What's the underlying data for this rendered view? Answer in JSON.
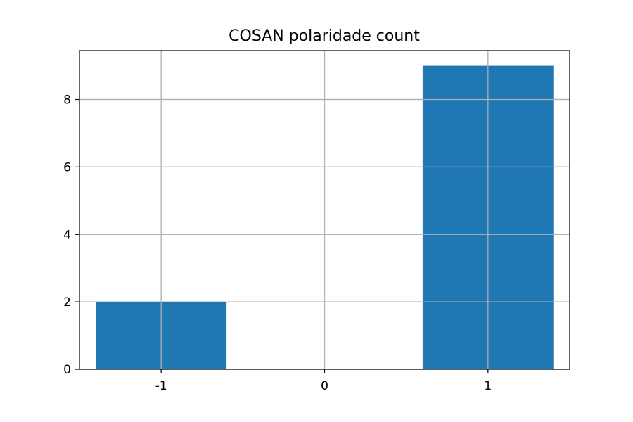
{
  "chart_data": {
    "type": "bar",
    "title": "COSAN polaridade count",
    "xlabel": "",
    "ylabel": "",
    "categories": [
      "-1",
      "0",
      "1"
    ],
    "x": [
      -1,
      0,
      1
    ],
    "values": [
      2,
      0,
      9
    ],
    "xlim": [
      -1.5,
      1.5
    ],
    "ylim": [
      0,
      9.45
    ],
    "yticks": [
      0,
      2,
      4,
      6,
      8
    ],
    "ytick_labels": [
      "0",
      "2",
      "4",
      "6",
      "8"
    ],
    "bar_color": "#1f77b4",
    "grid": true,
    "grid_color": "#b0b0b0",
    "legend": false
  }
}
